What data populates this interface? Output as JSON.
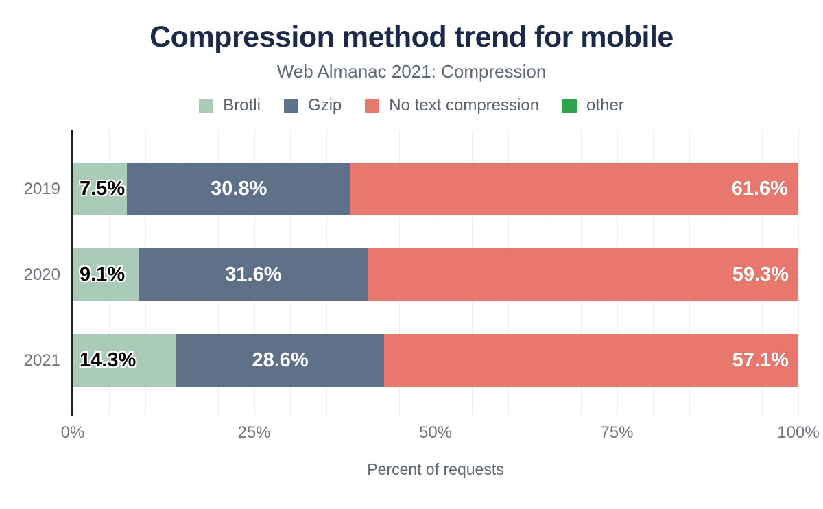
{
  "chart_data": {
    "type": "bar",
    "stacked": true,
    "orientation": "horizontal",
    "title": "Compression method trend for mobile",
    "subtitle": "Web Almanac 2021: Compression",
    "xlabel": "Percent of requests",
    "categories": [
      "2019",
      "2020",
      "2021"
    ],
    "series": [
      {
        "name": "Brotli",
        "color": "#a9cbb7",
        "values": [
          7.5,
          9.1,
          14.3
        ],
        "labels": [
          "7.5%",
          "9.1%",
          "14.3%"
        ],
        "label_color": "#000000",
        "label_align": "start"
      },
      {
        "name": "Gzip",
        "color": "#5f7089",
        "values": [
          30.8,
          31.6,
          28.6
        ],
        "labels": [
          "30.8%",
          "31.6%",
          "28.6%"
        ],
        "label_color": "#ffffff",
        "label_align": "center"
      },
      {
        "name": "No text compression",
        "color": "#e8786e",
        "values": [
          61.6,
          59.3,
          57.1
        ],
        "labels": [
          "61.6%",
          "59.3%",
          "57.1%"
        ],
        "label_color": "#ffffff",
        "label_align": "end"
      },
      {
        "name": "other",
        "color": "#2ea44f",
        "values": [
          0,
          0,
          0
        ],
        "labels": [
          "",
          "",
          ""
        ],
        "label_color": "#ffffff",
        "label_align": "center"
      }
    ],
    "x_ticks": [
      {
        "label": "0%",
        "value": 0
      },
      {
        "label": "25%",
        "value": 25
      },
      {
        "label": "50%",
        "value": 50
      },
      {
        "label": "75%",
        "value": 75
      },
      {
        "label": "100%",
        "value": 100
      }
    ],
    "xlim": [
      0,
      100
    ],
    "grid": {
      "interval": 5,
      "color": "#efefef",
      "on": true
    },
    "legend_position": "top",
    "colors": {
      "title": "#1b2a49",
      "subtitle": "#5e6876",
      "axis_text": "#6e737b",
      "axis_line": "#212121"
    }
  }
}
